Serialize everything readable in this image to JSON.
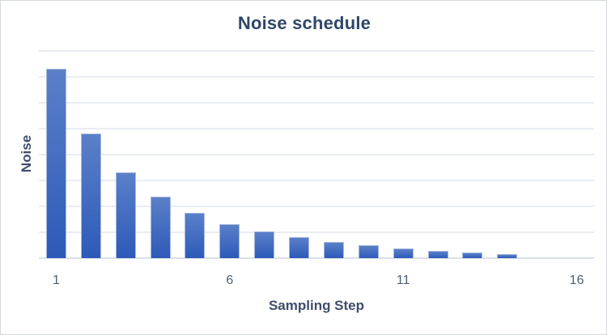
{
  "chart_data": {
    "type": "bar",
    "title": "Noise schedule",
    "xlabel": "Sampling Step",
    "ylabel": "Noise",
    "categories": [
      1,
      2,
      3,
      4,
      5,
      6,
      7,
      8,
      9,
      10,
      11,
      12,
      13,
      14,
      15,
      16
    ],
    "values": [
      7.3,
      4.8,
      3.3,
      2.38,
      1.75,
      1.31,
      1.04,
      0.81,
      0.63,
      0.5,
      0.38,
      0.29,
      0.21,
      0.16,
      0,
      0
    ],
    "ylim": [
      0,
      8
    ],
    "y_gridline_interval": 1,
    "x_tick_labels": [
      "1",
      "6",
      "11",
      "16"
    ],
    "x_tick_steps": [
      1,
      6,
      11,
      16
    ],
    "grid": "horizontal",
    "legend": "none",
    "colors": {
      "background": "#ffffff",
      "frame_border": "#d4d8dd",
      "bar_gradient_top": "#5b80c9",
      "bar_gradient_bottom": "#2d5ab8",
      "bar_border": "#a7bade",
      "gridline": "#e8ecf3",
      "axis_line": "#d9e0ea",
      "title_text": "#2e4668",
      "axis_title_text": "#3e4e6b",
      "tick_text": "#4e5d73"
    }
  }
}
